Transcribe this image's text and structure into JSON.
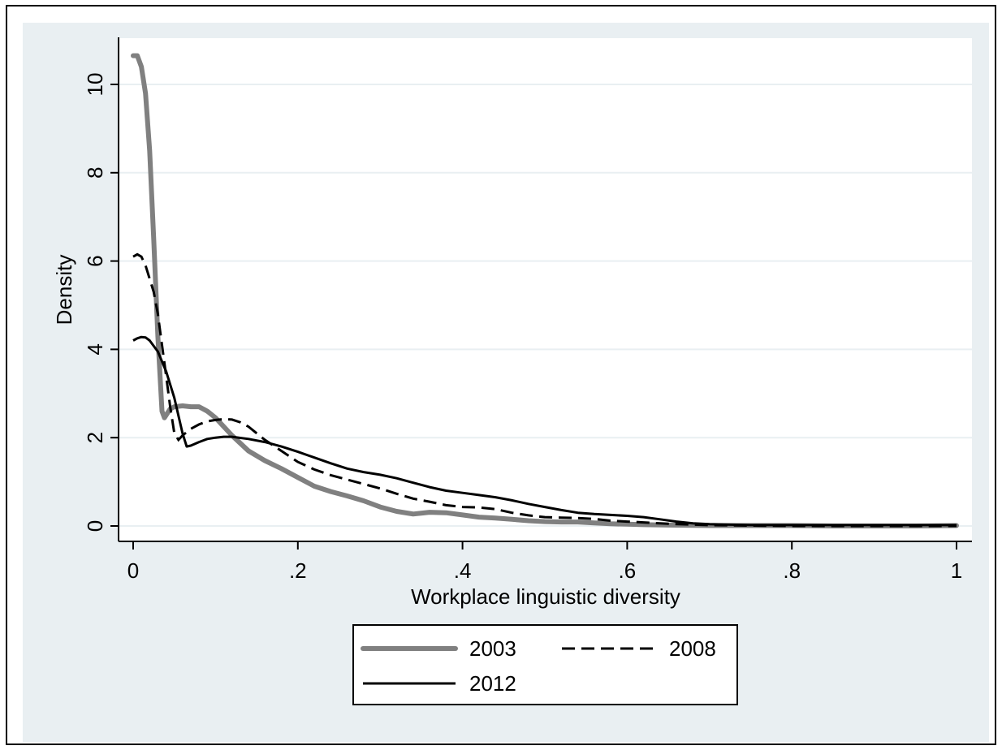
{
  "chart_data": {
    "type": "line",
    "xlabel": "Workplace linguistic diversity",
    "ylabel": "Density",
    "xlim": [
      0,
      1
    ],
    "ylim": [
      0,
      10.8
    ],
    "xticks": [
      {
        "value": 0,
        "label": "0"
      },
      {
        "value": 0.2,
        "label": ".2"
      },
      {
        "value": 0.4,
        "label": ".4"
      },
      {
        "value": 0.6,
        "label": ".6"
      },
      {
        "value": 0.8,
        "label": ".8"
      },
      {
        "value": 1,
        "label": "1"
      }
    ],
    "yticks": [
      {
        "value": 0,
        "label": "0"
      },
      {
        "value": 2,
        "label": "2"
      },
      {
        "value": 4,
        "label": "4"
      },
      {
        "value": 6,
        "label": "6"
      },
      {
        "value": 8,
        "label": "8"
      },
      {
        "value": 10,
        "label": "10"
      }
    ],
    "grid": true,
    "legend_position": "bottom",
    "colors": {
      "outer_background": "#e9eff2",
      "plot_background": "#ffffff",
      "grid": "#e9eff2",
      "series_2003": "#808080",
      "series_2008": "#000000",
      "series_2012": "#000000"
    },
    "series": [
      {
        "name": "2003",
        "style": "solid-thick",
        "x": [
          0,
          0.005,
          0.01,
          0.015,
          0.02,
          0.025,
          0.03,
          0.035,
          0.038,
          0.045,
          0.05,
          0.06,
          0.07,
          0.08,
          0.09,
          0.1,
          0.12,
          0.14,
          0.16,
          0.18,
          0.2,
          0.22,
          0.24,
          0.26,
          0.28,
          0.3,
          0.32,
          0.34,
          0.36,
          0.38,
          0.4,
          0.42,
          0.44,
          0.46,
          0.48,
          0.5,
          0.52,
          0.54,
          0.56,
          0.58,
          0.6,
          0.62,
          0.65,
          0.7,
          0.75,
          0.8,
          0.85,
          0.9,
          0.95,
          1.0
        ],
        "y": [
          10.65,
          10.65,
          10.4,
          9.8,
          8.5,
          6.5,
          4.3,
          2.6,
          2.45,
          2.65,
          2.7,
          2.72,
          2.7,
          2.7,
          2.6,
          2.45,
          2.05,
          1.7,
          1.48,
          1.3,
          1.1,
          0.9,
          0.78,
          0.68,
          0.57,
          0.43,
          0.33,
          0.27,
          0.31,
          0.3,
          0.25,
          0.2,
          0.18,
          0.15,
          0.12,
          0.1,
          0.09,
          0.09,
          0.07,
          0.05,
          0.04,
          0.03,
          0.02,
          0.01,
          0.01,
          0.01,
          0.0,
          0.0,
          0.0,
          0.01
        ]
      },
      {
        "name": "2008",
        "style": "dashed",
        "x": [
          0,
          0.005,
          0.01,
          0.015,
          0.02,
          0.025,
          0.03,
          0.035,
          0.04,
          0.045,
          0.05,
          0.055,
          0.06,
          0.07,
          0.08,
          0.09,
          0.1,
          0.11,
          0.12,
          0.13,
          0.14,
          0.15,
          0.16,
          0.18,
          0.2,
          0.22,
          0.24,
          0.26,
          0.28,
          0.3,
          0.32,
          0.34,
          0.36,
          0.38,
          0.4,
          0.42,
          0.44,
          0.46,
          0.48,
          0.5,
          0.52,
          0.54,
          0.56,
          0.58,
          0.6,
          0.62,
          0.65,
          0.7,
          0.75,
          0.8,
          0.85,
          0.9,
          0.95,
          1.0
        ],
        "y": [
          6.1,
          6.15,
          6.1,
          5.9,
          5.6,
          5.3,
          4.8,
          4.1,
          3.4,
          2.7,
          2.1,
          1.95,
          2.05,
          2.2,
          2.3,
          2.37,
          2.4,
          2.42,
          2.41,
          2.35,
          2.25,
          2.1,
          1.95,
          1.7,
          1.45,
          1.28,
          1.15,
          1.05,
          0.95,
          0.85,
          0.73,
          0.62,
          0.55,
          0.47,
          0.43,
          0.42,
          0.38,
          0.3,
          0.24,
          0.2,
          0.19,
          0.18,
          0.16,
          0.12,
          0.1,
          0.08,
          0.05,
          0.02,
          0.01,
          0.0,
          0.0,
          0.0,
          0.0,
          0.0
        ]
      },
      {
        "name": "2012",
        "style": "solid",
        "x": [
          0,
          0.005,
          0.01,
          0.015,
          0.02,
          0.03,
          0.04,
          0.05,
          0.06,
          0.065,
          0.07,
          0.08,
          0.09,
          0.1,
          0.11,
          0.12,
          0.14,
          0.16,
          0.18,
          0.2,
          0.22,
          0.24,
          0.26,
          0.28,
          0.3,
          0.32,
          0.34,
          0.36,
          0.38,
          0.4,
          0.42,
          0.44,
          0.46,
          0.48,
          0.5,
          0.52,
          0.54,
          0.56,
          0.58,
          0.6,
          0.62,
          0.64,
          0.66,
          0.68,
          0.7,
          0.75,
          0.8,
          0.85,
          0.9,
          0.95,
          1.0
        ],
        "y": [
          4.2,
          4.25,
          4.28,
          4.27,
          4.2,
          3.95,
          3.5,
          2.9,
          2.1,
          1.8,
          1.82,
          1.9,
          1.97,
          2.0,
          2.02,
          2.02,
          1.97,
          1.9,
          1.8,
          1.68,
          1.55,
          1.42,
          1.3,
          1.22,
          1.16,
          1.08,
          0.98,
          0.88,
          0.8,
          0.75,
          0.7,
          0.65,
          0.58,
          0.5,
          0.43,
          0.36,
          0.3,
          0.27,
          0.25,
          0.23,
          0.2,
          0.15,
          0.1,
          0.06,
          0.04,
          0.02,
          0.02,
          0.02,
          0.02,
          0.02,
          0.02
        ]
      }
    ]
  }
}
